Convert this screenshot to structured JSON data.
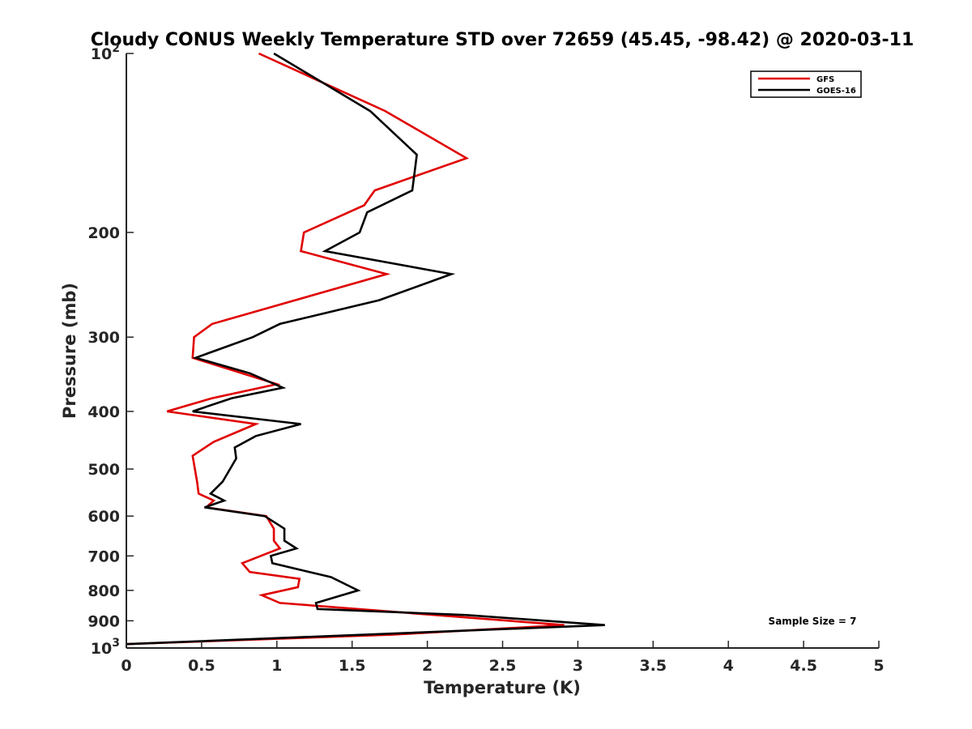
{
  "chart_data": {
    "type": "line",
    "title": "Cloudy CONUS Weekly Temperature STD over 72659 (45.45, -98.42) @ 2020-03-11",
    "xlabel": "Temperature (K)",
    "ylabel": "Pressure (mb)",
    "xlim": [
      0,
      5
    ],
    "ylim": [
      100,
      1000
    ],
    "y_scale": "log",
    "y_reversed": true,
    "grid": false,
    "legend_position": "top-right",
    "x_ticks": [
      {
        "value": 0,
        "label": "0"
      },
      {
        "value": 0.5,
        "label": "0.5"
      },
      {
        "value": 1,
        "label": "1"
      },
      {
        "value": 1.5,
        "label": "1.5"
      },
      {
        "value": 2,
        "label": "2"
      },
      {
        "value": 2.5,
        "label": "2.5"
      },
      {
        "value": 3,
        "label": "3"
      },
      {
        "value": 3.5,
        "label": "3.5"
      },
      {
        "value": 4,
        "label": "4"
      },
      {
        "value": 4.5,
        "label": "4.5"
      },
      {
        "value": 5,
        "label": "5"
      }
    ],
    "y_ticks": [
      {
        "value": 100,
        "label": "10",
        "sup": "2"
      },
      {
        "value": 200,
        "label": "200"
      },
      {
        "value": 300,
        "label": "300"
      },
      {
        "value": 400,
        "label": "400"
      },
      {
        "value": 500,
        "label": "500"
      },
      {
        "value": 600,
        "label": "600"
      },
      {
        "value": 700,
        "label": "700"
      },
      {
        "value": 800,
        "label": "800"
      },
      {
        "value": 900,
        "label": "900"
      },
      {
        "value": 1000,
        "label": "10",
        "sup": "3"
      }
    ],
    "series": [
      {
        "name": "GFS",
        "color": "#e00000",
        "points": [
          [
            0.88,
            100
          ],
          [
            1.72,
            125
          ],
          [
            2.26,
            150
          ],
          [
            1.65,
            170
          ],
          [
            1.58,
            180
          ],
          [
            1.18,
            200
          ],
          [
            1.16,
            215
          ],
          [
            1.73,
            235
          ],
          [
            0.57,
            285
          ],
          [
            0.45,
            300
          ],
          [
            0.44,
            325
          ],
          [
            1.0,
            360
          ],
          [
            0.57,
            380
          ],
          [
            0.27,
            400
          ],
          [
            0.86,
            420
          ],
          [
            0.58,
            450
          ],
          [
            0.44,
            475
          ],
          [
            0.47,
            525
          ],
          [
            0.48,
            550
          ],
          [
            0.58,
            565
          ],
          [
            0.53,
            580
          ],
          [
            0.93,
            600
          ],
          [
            0.98,
            630
          ],
          [
            0.98,
            660
          ],
          [
            1.02,
            680
          ],
          [
            0.77,
            720
          ],
          [
            0.82,
            745
          ],
          [
            1.15,
            765
          ],
          [
            1.14,
            790
          ],
          [
            0.9,
            815
          ],
          [
            1.02,
            840
          ],
          [
            2.91,
            915
          ],
          [
            1.76,
            950
          ],
          [
            0.0,
            985
          ]
        ]
      },
      {
        "name": "GOES-16",
        "color": "#000000",
        "points": [
          [
            0.98,
            100
          ],
          [
            1.62,
            125
          ],
          [
            1.93,
            148
          ],
          [
            1.9,
            170
          ],
          [
            1.6,
            185
          ],
          [
            1.55,
            200
          ],
          [
            1.32,
            215
          ],
          [
            2.16,
            235
          ],
          [
            1.68,
            260
          ],
          [
            1.02,
            285
          ],
          [
            0.84,
            300
          ],
          [
            0.46,
            325
          ],
          [
            0.82,
            345
          ],
          [
            1.04,
            365
          ],
          [
            0.7,
            380
          ],
          [
            0.44,
            400
          ],
          [
            1.16,
            420
          ],
          [
            0.86,
            440
          ],
          [
            0.72,
            460
          ],
          [
            0.73,
            480
          ],
          [
            0.64,
            525
          ],
          [
            0.56,
            550
          ],
          [
            0.65,
            565
          ],
          [
            0.52,
            580
          ],
          [
            0.92,
            600
          ],
          [
            1.05,
            630
          ],
          [
            1.05,
            660
          ],
          [
            1.13,
            680
          ],
          [
            0.96,
            700
          ],
          [
            0.97,
            720
          ],
          [
            1.36,
            760
          ],
          [
            1.54,
            800
          ],
          [
            1.26,
            840
          ],
          [
            1.27,
            860
          ],
          [
            2.26,
            880
          ],
          [
            3.18,
            915
          ],
          [
            0.0,
            985
          ]
        ]
      }
    ],
    "legend": [
      {
        "label": "GFS",
        "color": "#e00000"
      },
      {
        "label": "GOES-16",
        "color": "#000000"
      }
    ],
    "annotation": "Sample Size = 7"
  }
}
